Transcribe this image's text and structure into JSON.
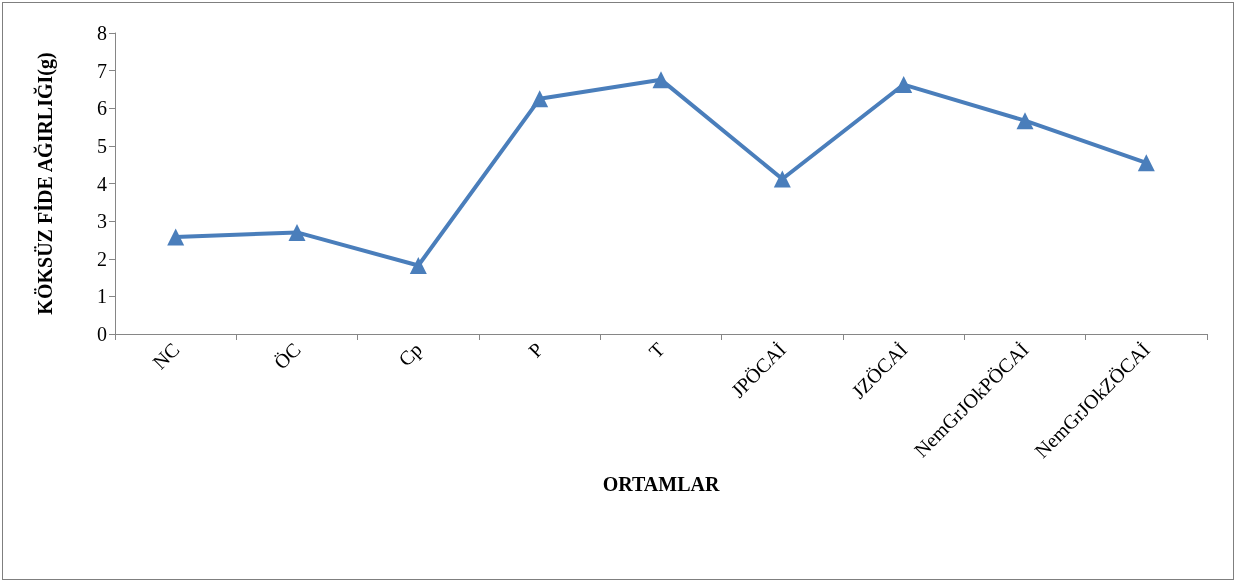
{
  "chart_data": {
    "type": "line",
    "categories": [
      "NC",
      "ÖC",
      "Cp",
      "P",
      "T",
      "JPÖCAİ",
      "JZÖCAİ",
      "NemGrJOkPÖCAİ",
      "NemGrJOkZÖCAİ"
    ],
    "series": [
      {
        "color": "#4a7ebb",
        "values": [
          2.58,
          2.7,
          1.82,
          6.25,
          6.76,
          4.12,
          6.63,
          5.67,
          4.55
        ]
      }
    ],
    "xlabel": "ORTAMLAR",
    "ylabel": "KÖKSÜZ FİDE AĞIRLIĞI(g)",
    "ylim": [
      0,
      8
    ],
    "yticks": [
      0,
      1,
      2,
      3,
      4,
      5,
      6,
      7,
      8
    ],
    "grid": false,
    "marker": "triangle",
    "line_style": "solid"
  }
}
